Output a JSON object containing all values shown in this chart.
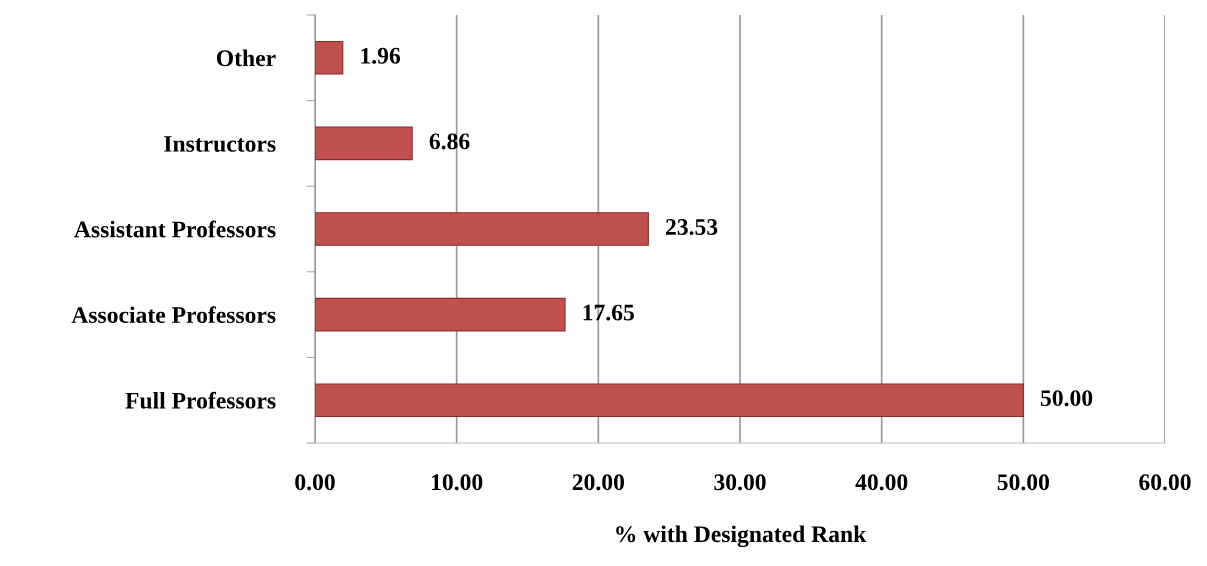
{
  "chart_data": {
    "type": "bar",
    "orientation": "horizontal",
    "xlabel": "% with Designated Rank",
    "categories": [
      "Other",
      "Instructors",
      "Assistant Professors",
      "Associate Professors",
      "Full Professors"
    ],
    "values": [
      1.96,
      6.86,
      23.53,
      17.65,
      50.0
    ],
    "value_labels": [
      "1.96",
      "6.86",
      "23.53",
      "17.65",
      "50.00"
    ],
    "color": "#c0504d",
    "xlim": [
      0,
      60
    ],
    "xticks": [
      {
        "value": 0,
        "label": "0.00"
      },
      {
        "value": 10,
        "label": "10.00"
      },
      {
        "value": 20,
        "label": "20.00"
      },
      {
        "value": 30,
        "label": "30.00"
      },
      {
        "value": 40,
        "label": "40.00"
      },
      {
        "value": 50,
        "label": "50.00"
      },
      {
        "value": 60,
        "label": "60.00"
      }
    ],
    "grid": "x"
  }
}
